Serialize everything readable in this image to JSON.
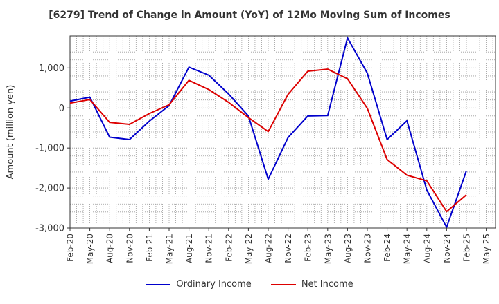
{
  "chart_data": {
    "type": "line",
    "title": "[6279]  Trend of Change in Amount (YoY) of 12Mo Moving Sum of Incomes",
    "ylabel": "Amount (million yen)",
    "xlabel": "",
    "ylim": [
      -3000,
      1800
    ],
    "yticks": [
      1000,
      0,
      -1000,
      -2000,
      -3000
    ],
    "ytick_labels": [
      "1,000",
      "0",
      "-1,000",
      "-2,000",
      "-3,000"
    ],
    "x_tick_labels": [
      "Feb-20",
      "May-20",
      "Aug-20",
      "Nov-20",
      "Feb-21",
      "May-21",
      "Aug-21",
      "Nov-21",
      "Feb-22",
      "May-22",
      "Aug-22",
      "Nov-22",
      "Feb-23",
      "May-23",
      "Aug-23",
      "Nov-23",
      "Feb-24",
      "May-24",
      "Aug-24",
      "Nov-24",
      "Feb-25",
      "May-25"
    ],
    "categories": [
      "Feb-20",
      "May-20",
      "Aug-20",
      "Nov-20",
      "Feb-21",
      "May-21",
      "Aug-21",
      "Nov-21",
      "Feb-22",
      "May-22",
      "Aug-22",
      "Nov-22",
      "Feb-23",
      "May-23",
      "Aug-23",
      "Nov-23",
      "Feb-24",
      "May-24",
      "Aug-24",
      "Nov-24",
      "Feb-25"
    ],
    "grid": true,
    "legend_position": "bottom",
    "series": [
      {
        "name": "Ordinary Income",
        "color": "#0000cc",
        "values": [
          170,
          270,
          -730,
          -790,
          -330,
          60,
          1020,
          820,
          350,
          -200,
          -1780,
          -740,
          -200,
          -190,
          1750,
          870,
          -790,
          -320,
          -2050,
          -2980,
          -1570
        ]
      },
      {
        "name": "Net Income",
        "color": "#dd0000",
        "values": [
          120,
          210,
          -360,
          -410,
          -140,
          80,
          690,
          460,
          140,
          -240,
          -590,
          340,
          920,
          970,
          730,
          -10,
          -1290,
          -1680,
          -1820,
          -2590,
          -2170
        ]
      }
    ]
  }
}
